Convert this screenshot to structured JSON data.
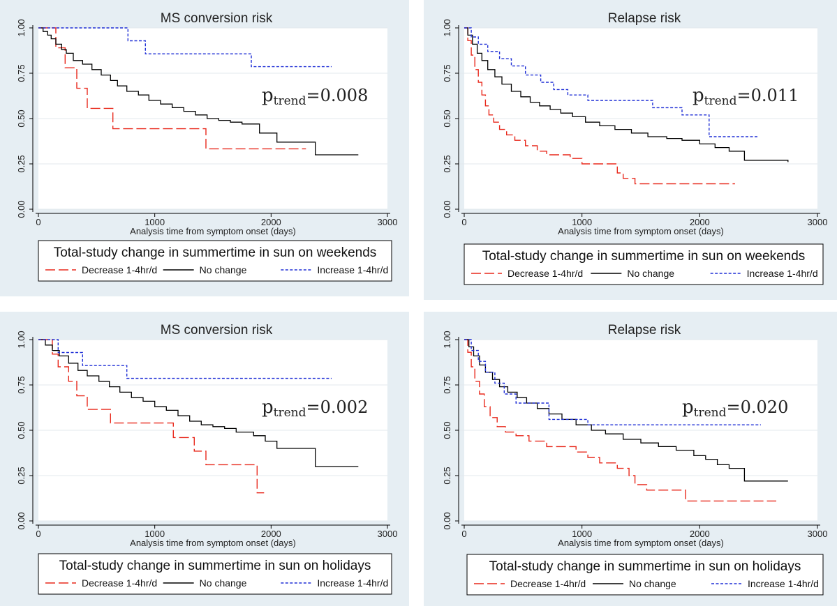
{
  "colors": {
    "panel_bg": "#e6eef3",
    "plot_bg": "#ffffff",
    "decrease": "#e8291c",
    "no_change": "#000000",
    "increase": "#1f2fd6",
    "grid": "#e3e8ec",
    "axis": "#000000"
  },
  "legend_labels": {
    "decrease": "Decrease 1-4hr/d",
    "no_change": "No change",
    "increase": "Increase 1-4hr/d"
  },
  "chart_data": [
    {
      "type": "line",
      "title": "MS conversion risk",
      "xlabel": "Analysis time from symptom onset (days)",
      "ylabel": "",
      "xlim": [
        0,
        3000
      ],
      "ylim": [
        0,
        1
      ],
      "x_ticks": [
        "0",
        "1000",
        "2000",
        "3000"
      ],
      "y_ticks": [
        "0.00",
        "0.25",
        "0.50",
        "0.75",
        "1.00"
      ],
      "p_label": {
        "prefix": "p",
        "subscript": "trend",
        "value": "=0.008"
      },
      "legend_title": "Total-study change in summertime in sun on weekends",
      "series": [
        {
          "name": "Decrease 1-4hr/d",
          "key": "decrease",
          "x": [
            0,
            150,
            200,
            230,
            330,
            420,
            640,
            1440,
            2300
          ],
          "y": [
            1.0,
            0.89,
            0.89,
            0.78,
            0.667,
            0.556,
            0.444,
            0.333,
            0.333
          ]
        },
        {
          "name": "No change",
          "key": "no_change",
          "x": [
            0,
            40,
            80,
            110,
            150,
            200,
            240,
            300,
            380,
            460,
            540,
            620,
            680,
            760,
            860,
            950,
            1050,
            1150,
            1250,
            1350,
            1450,
            1550,
            1650,
            1750,
            1900,
            2050,
            2380,
            2750
          ],
          "y": [
            1.0,
            0.98,
            0.96,
            0.94,
            0.91,
            0.88,
            0.86,
            0.82,
            0.8,
            0.77,
            0.74,
            0.71,
            0.68,
            0.65,
            0.63,
            0.6,
            0.58,
            0.56,
            0.54,
            0.52,
            0.5,
            0.49,
            0.48,
            0.47,
            0.42,
            0.37,
            0.3,
            0.3
          ]
        },
        {
          "name": "Increase 1-4hr/d",
          "key": "increase",
          "x": [
            0,
            770,
            920,
            1830,
            2520
          ],
          "y": [
            1.0,
            0.929,
            0.857,
            0.786,
            0.786
          ]
        }
      ]
    },
    {
      "type": "line",
      "title": "Relapse risk",
      "xlabel": "Analysis time from symptom onset (days)",
      "ylabel": "",
      "xlim": [
        0,
        3000
      ],
      "ylim": [
        0,
        1
      ],
      "x_ticks": [
        "0",
        "1000",
        "2000",
        "3000"
      ],
      "y_ticks": [
        "0.00",
        "0.25",
        "0.50",
        "0.75",
        "1.00"
      ],
      "p_label": {
        "prefix": "p",
        "subscript": "trend",
        "value": "=0.011"
      },
      "legend_title": "Total-study change in summertime in sun on weekends",
      "series": [
        {
          "name": "Decrease 1-4hr/d",
          "key": "decrease",
          "x": [
            0,
            30,
            60,
            90,
            120,
            150,
            180,
            210,
            250,
            300,
            360,
            430,
            520,
            620,
            700,
            900,
            1000,
            1300,
            1350,
            1450,
            2300
          ],
          "y": [
            1.0,
            0.93,
            0.85,
            0.77,
            0.7,
            0.63,
            0.57,
            0.52,
            0.48,
            0.44,
            0.41,
            0.38,
            0.35,
            0.32,
            0.3,
            0.28,
            0.25,
            0.2,
            0.17,
            0.14,
            0.14
          ]
        },
        {
          "name": "No change",
          "key": "no_change",
          "x": [
            0,
            30,
            70,
            110,
            150,
            200,
            260,
            320,
            400,
            480,
            560,
            640,
            730,
            820,
            920,
            1030,
            1150,
            1280,
            1420,
            1560,
            1720,
            1850,
            2000,
            2130,
            2250,
            2380,
            2750
          ],
          "y": [
            1.0,
            0.96,
            0.91,
            0.86,
            0.82,
            0.77,
            0.73,
            0.69,
            0.65,
            0.62,
            0.59,
            0.57,
            0.55,
            0.53,
            0.51,
            0.48,
            0.46,
            0.44,
            0.42,
            0.4,
            0.39,
            0.38,
            0.36,
            0.34,
            0.32,
            0.27,
            0.26
          ]
        },
        {
          "name": "Increase 1-4hr/d",
          "key": "increase",
          "x": [
            0,
            60,
            120,
            200,
            300,
            400,
            520,
            650,
            760,
            880,
            1050,
            1600,
            1850,
            2080,
            2500
          ],
          "y": [
            1.0,
            0.95,
            0.91,
            0.87,
            0.83,
            0.79,
            0.74,
            0.7,
            0.66,
            0.63,
            0.6,
            0.56,
            0.52,
            0.4,
            0.4
          ]
        }
      ]
    },
    {
      "type": "line",
      "title": "MS conversion risk",
      "xlabel": "Analysis time from symptom onset (days)",
      "ylabel": "",
      "xlim": [
        0,
        3000
      ],
      "ylim": [
        0,
        1
      ],
      "x_ticks": [
        "0",
        "1000",
        "2000",
        "3000"
      ],
      "y_ticks": [
        "0.00",
        "0.25",
        "0.50",
        "0.75",
        "1.00"
      ],
      "p_label": {
        "prefix": "p",
        "subscript": "trend",
        "value": "=0.002"
      },
      "legend_title": "Total-study change in summertime in sun on holidays",
      "series": [
        {
          "name": "Decrease 1-4hr/d",
          "key": "decrease",
          "x": [
            0,
            120,
            170,
            260,
            330,
            420,
            620,
            1160,
            1340,
            1440,
            1880,
            1940
          ],
          "y": [
            1.0,
            0.92,
            0.85,
            0.77,
            0.69,
            0.615,
            0.54,
            0.46,
            0.385,
            0.31,
            0.155,
            0.155
          ]
        },
        {
          "name": "No change",
          "key": "no_change",
          "x": [
            0,
            60,
            120,
            180,
            260,
            340,
            420,
            520,
            610,
            700,
            800,
            900,
            1000,
            1100,
            1200,
            1300,
            1400,
            1500,
            1600,
            1700,
            1850,
            1950,
            2050,
            2380,
            2750
          ],
          "y": [
            1.0,
            0.97,
            0.94,
            0.91,
            0.87,
            0.83,
            0.8,
            0.77,
            0.74,
            0.71,
            0.68,
            0.66,
            0.63,
            0.61,
            0.58,
            0.55,
            0.53,
            0.52,
            0.51,
            0.49,
            0.47,
            0.44,
            0.4,
            0.3,
            0.3
          ]
        },
        {
          "name": "Increase 1-4hr/d",
          "key": "increase",
          "x": [
            0,
            170,
            380,
            760,
            2520
          ],
          "y": [
            1.0,
            0.929,
            0.857,
            0.786,
            0.786
          ]
        }
      ]
    },
    {
      "type": "line",
      "title": "Relapse risk",
      "xlabel": "Analysis time from symptom onset (days)",
      "ylabel": "",
      "xlim": [
        0,
        3000
      ],
      "ylim": [
        0,
        1
      ],
      "x_ticks": [
        "0",
        "1000",
        "2000",
        "3000"
      ],
      "y_ticks": [
        "0.00",
        "0.25",
        "0.50",
        "0.75",
        "1.00"
      ],
      "p_label": {
        "prefix": "p",
        "subscript": "trend",
        "value": "=0.020"
      },
      "legend_title": "Total-study change in summertime in sun on holidays",
      "series": [
        {
          "name": "Decrease 1-4hr/d",
          "key": "decrease",
          "x": [
            0,
            30,
            60,
            90,
            130,
            170,
            220,
            280,
            350,
            440,
            550,
            700,
            950,
            1050,
            1150,
            1300,
            1400,
            1450,
            1550,
            1880,
            2650
          ],
          "y": [
            1.0,
            0.93,
            0.85,
            0.77,
            0.7,
            0.63,
            0.57,
            0.52,
            0.49,
            0.47,
            0.44,
            0.41,
            0.38,
            0.35,
            0.32,
            0.29,
            0.25,
            0.2,
            0.17,
            0.11,
            0.11
          ]
        },
        {
          "name": "No change",
          "key": "no_change",
          "x": [
            0,
            40,
            80,
            130,
            180,
            240,
            300,
            370,
            450,
            530,
            620,
            720,
            830,
            950,
            1080,
            1200,
            1350,
            1500,
            1650,
            1800,
            1950,
            2050,
            2150,
            2250,
            2380,
            2750
          ],
          "y": [
            1.0,
            0.96,
            0.91,
            0.86,
            0.82,
            0.78,
            0.74,
            0.71,
            0.68,
            0.65,
            0.62,
            0.59,
            0.56,
            0.53,
            0.5,
            0.48,
            0.45,
            0.43,
            0.41,
            0.39,
            0.36,
            0.34,
            0.31,
            0.29,
            0.22,
            0.22
          ]
        },
        {
          "name": "Increase 1-4hr/d",
          "key": "increase",
          "x": [
            0,
            60,
            120,
            180,
            260,
            340,
            440,
            560,
            720,
            1050,
            2520
          ],
          "y": [
            1.0,
            0.94,
            0.88,
            0.82,
            0.76,
            0.7,
            0.65,
            0.65,
            0.56,
            0.53,
            0.53
          ]
        }
      ]
    }
  ]
}
